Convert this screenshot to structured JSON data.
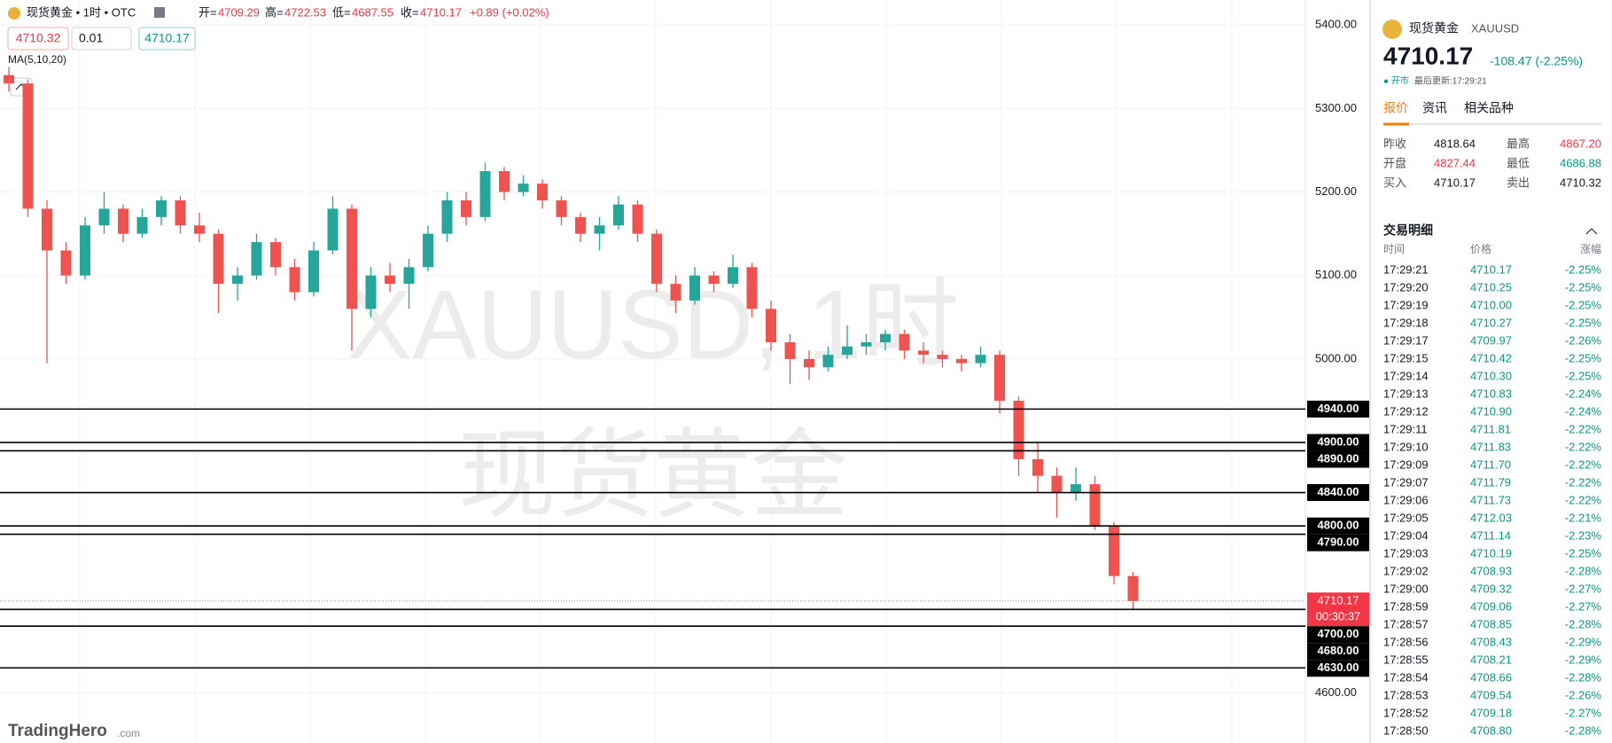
{
  "header": {
    "symbol": "现货黄金 • 1时 • OTC",
    "ohlc": [
      {
        "label": "开=",
        "value": "4709.29"
      },
      {
        "label": "高=",
        "value": "4722.53"
      },
      {
        "label": "低=",
        "value": "4687.55"
      },
      {
        "label": "收=",
        "value": "4710.17"
      }
    ],
    "change": "+0.89 (+0.02%)",
    "buttons": [
      "4710.32",
      "0.01",
      "4710.17"
    ],
    "indicator": "MA(5,10,20)"
  },
  "watermark": [
    "XAUUSD, 1时",
    "现货黄金"
  ],
  "logo": {
    "name": "TradingHero",
    "suffix": ".com"
  },
  "chart_data": {
    "type": "candlestick",
    "ylim": [
      4540,
      5430
    ],
    "yticks": [
      {
        "value": 4600,
        "label": "4600.00"
      },
      {
        "value": 4700,
        "label": "4700.00"
      },
      {
        "value": 4800,
        "label": "4800.00"
      },
      {
        "value": 4900,
        "label": "4900.00"
      },
      {
        "value": 5000,
        "label": "5000.00"
      },
      {
        "value": 5100,
        "label": "5100.00"
      },
      {
        "value": 5200,
        "label": "5200.00"
      },
      {
        "value": 5300,
        "label": "5300.00"
      },
      {
        "value": 5400,
        "label": "5400.00"
      }
    ],
    "levels": [
      {
        "value": 4940,
        "label": "4940.00"
      },
      {
        "value": 4900,
        "label": "4900.00"
      },
      {
        "value": 4890,
        "label": "4890.00"
      },
      {
        "value": 4840,
        "label": "4840.00"
      },
      {
        "value": 4800,
        "label": "4800.00"
      },
      {
        "value": 4790,
        "label": "4790.00"
      },
      {
        "value": 4700,
        "label": "4700.00"
      },
      {
        "value": 4680,
        "label": "4680.00"
      },
      {
        "value": 4630,
        "label": "4630.00"
      }
    ],
    "current_price": 4710.17,
    "countdown": "00:30:37",
    "up_color": "#26a69a",
    "down_color": "#ef5350",
    "candles": [
      [
        5340,
        5350,
        5320,
        5330
      ],
      [
        5330,
        5335,
        5170,
        5180
      ],
      [
        5180,
        5190,
        4995,
        5130
      ],
      [
        5130,
        5140,
        5090,
        5100
      ],
      [
        5100,
        5170,
        5095,
        5160
      ],
      [
        5160,
        5200,
        5150,
        5180
      ],
      [
        5180,
        5185,
        5140,
        5150
      ],
      [
        5150,
        5180,
        5145,
        5170
      ],
      [
        5170,
        5195,
        5160,
        5190
      ],
      [
        5190,
        5195,
        5150,
        5160
      ],
      [
        5160,
        5175,
        5140,
        5150
      ],
      [
        5150,
        5155,
        5055,
        5090
      ],
      [
        5090,
        5110,
        5070,
        5100
      ],
      [
        5100,
        5150,
        5095,
        5140
      ],
      [
        5140,
        5145,
        5100,
        5110
      ],
      [
        5110,
        5120,
        5070,
        5080
      ],
      [
        5080,
        5140,
        5075,
        5130
      ],
      [
        5130,
        5195,
        5125,
        5180
      ],
      [
        5180,
        5185,
        5010,
        5060
      ],
      [
        5060,
        5110,
        5050,
        5100
      ],
      [
        5100,
        5115,
        5080,
        5090
      ],
      [
        5090,
        5120,
        5060,
        5110
      ],
      [
        5110,
        5160,
        5105,
        5150
      ],
      [
        5150,
        5200,
        5140,
        5190
      ],
      [
        5190,
        5200,
        5160,
        5170
      ],
      [
        5170,
        5235,
        5165,
        5225
      ],
      [
        5225,
        5230,
        5190,
        5200
      ],
      [
        5200,
        5220,
        5195,
        5210
      ],
      [
        5210,
        5215,
        5180,
        5190
      ],
      [
        5190,
        5195,
        5160,
        5170
      ],
      [
        5170,
        5175,
        5140,
        5150
      ],
      [
        5150,
        5170,
        5130,
        5160
      ],
      [
        5160,
        5195,
        5155,
        5185
      ],
      [
        5185,
        5190,
        5140,
        5150
      ],
      [
        5150,
        5155,
        5080,
        5090
      ],
      [
        5090,
        5100,
        5055,
        5070
      ],
      [
        5070,
        5110,
        5065,
        5100
      ],
      [
        5100,
        5105,
        5080,
        5090
      ],
      [
        5090,
        5125,
        5085,
        5110
      ],
      [
        5110,
        5115,
        5050,
        5060
      ],
      [
        5060,
        5070,
        5010,
        5020
      ],
      [
        5020,
        5030,
        4970,
        5000
      ],
      [
        5000,
        5010,
        4975,
        4990
      ],
      [
        4990,
        5015,
        4985,
        5005
      ],
      [
        5005,
        5040,
        5000,
        5015
      ],
      [
        5015,
        5030,
        5005,
        5020
      ],
      [
        5020,
        5035,
        5010,
        5030
      ],
      [
        5030,
        5035,
        5000,
        5010
      ],
      [
        5010,
        5020,
        4995,
        5005
      ],
      [
        5005,
        5010,
        4990,
        5000
      ],
      [
        5000,
        5005,
        4985,
        4995
      ],
      [
        4995,
        5015,
        4990,
        5005
      ],
      [
        5005,
        5010,
        4935,
        4950
      ],
      [
        4950,
        4955,
        4860,
        4880
      ],
      [
        4880,
        4900,
        4840,
        4860
      ],
      [
        4860,
        4870,
        4810,
        4840
      ],
      [
        4840,
        4870,
        4830,
        4850
      ],
      [
        4850,
        4860,
        4795,
        4800
      ],
      [
        4800,
        4805,
        4730,
        4740
      ],
      [
        4740,
        4745,
        4700,
        4710
      ]
    ]
  },
  "panel": {
    "name": "现货黄金",
    "code": "XAUUSD",
    "price": "4710.17",
    "change": "-108.47 (-2.25%)",
    "status": "● 开市",
    "updated": "最后更新:17:29:21",
    "tabs": [
      "报价",
      "资讯",
      "相关品种"
    ],
    "stats": [
      [
        "昨收",
        "4818.64",
        "最高",
        "4867.20"
      ],
      [
        "开盘",
        "4827.44",
        "最低",
        "4686.88"
      ],
      [
        "买入",
        "4710.17",
        "卖出",
        "4710.32"
      ]
    ],
    "trades_title": "交易明细",
    "trade_headers": [
      "时间",
      "价格",
      "涨幅"
    ],
    "trades": [
      [
        "17:29:21",
        "4710.17",
        "-2.25%"
      ],
      [
        "17:29:20",
        "4710.25",
        "-2.25%"
      ],
      [
        "17:29:19",
        "4710.00",
        "-2.25%"
      ],
      [
        "17:29:18",
        "4710.27",
        "-2.25%"
      ],
      [
        "17:29:17",
        "4709.97",
        "-2.26%"
      ],
      [
        "17:29:15",
        "4710.42",
        "-2.25%"
      ],
      [
        "17:29:14",
        "4710.30",
        "-2.25%"
      ],
      [
        "17:29:13",
        "4710.83",
        "-2.24%"
      ],
      [
        "17:29:12",
        "4710.90",
        "-2.24%"
      ],
      [
        "17:29:11",
        "4711.81",
        "-2.22%"
      ],
      [
        "17:29:10",
        "4711.83",
        "-2.22%"
      ],
      [
        "17:29:09",
        "4711.70",
        "-2.22%"
      ],
      [
        "17:29:07",
        "4711.79",
        "-2.22%"
      ],
      [
        "17:29:06",
        "4711.73",
        "-2.22%"
      ],
      [
        "17:29:05",
        "4712.03",
        "-2.21%"
      ],
      [
        "17:29:04",
        "4711.14",
        "-2.23%"
      ],
      [
        "17:29:03",
        "4710.19",
        "-2.25%"
      ],
      [
        "17:29:02",
        "4708.93",
        "-2.28%"
      ],
      [
        "17:29:00",
        "4709.32",
        "-2.27%"
      ],
      [
        "17:28:59",
        "4709.06",
        "-2.27%"
      ],
      [
        "17:28:57",
        "4708.85",
        "-2.28%"
      ],
      [
        "17:28:56",
        "4708.43",
        "-2.29%"
      ],
      [
        "17:28:55",
        "4708.21",
        "-2.29%"
      ],
      [
        "17:28:54",
        "4708.66",
        "-2.28%"
      ],
      [
        "17:28:53",
        "4709.54",
        "-2.26%"
      ],
      [
        "17:28:52",
        "4709.18",
        "-2.27%"
      ],
      [
        "17:28:50",
        "4708.80",
        "-2.28%"
      ]
    ]
  }
}
